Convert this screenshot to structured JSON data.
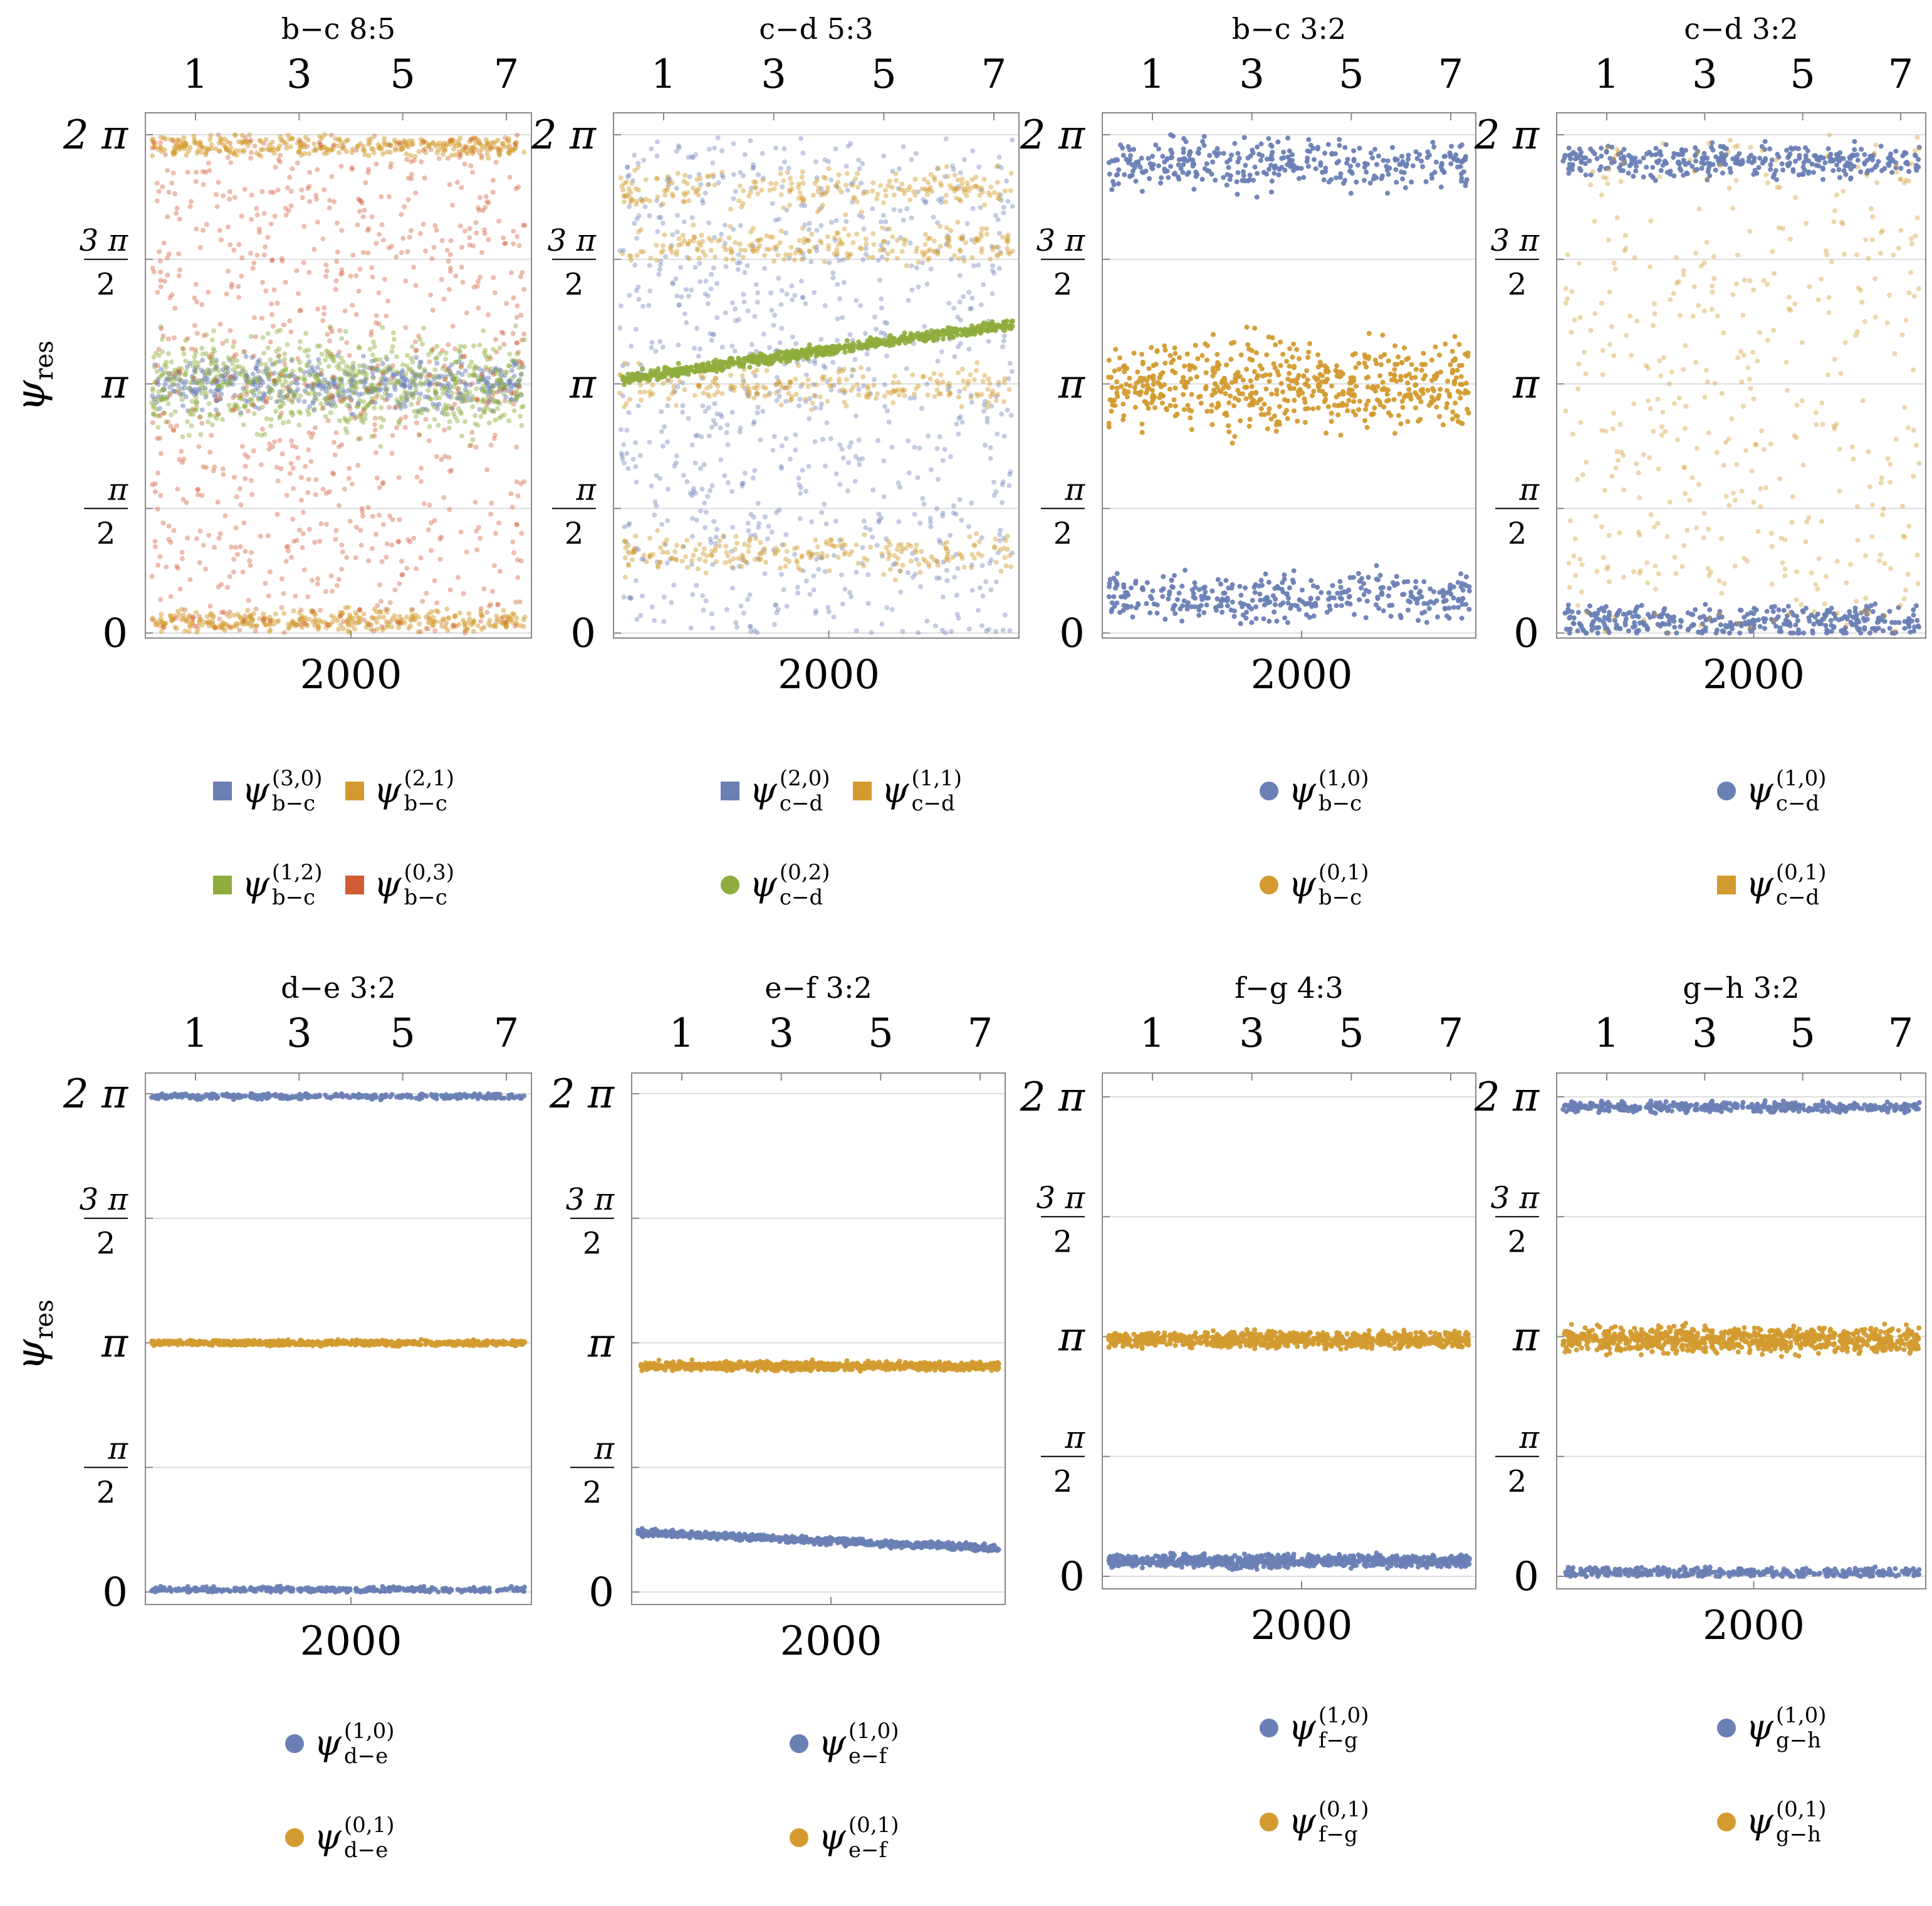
{
  "y_axis_label": "ψres",
  "y_axis_symbol": "ψ",
  "y_axis_subscript": "res",
  "y_tick_labels": [
    "0",
    "π/2",
    "π",
    "3π/2",
    "2π"
  ],
  "colors": {
    "blue": "#6a80b5",
    "orange": "#d39b2f",
    "green": "#8fad3c",
    "red": "#d15b34"
  },
  "chart_data": [
    {
      "type": "scatter",
      "title": "b−c 8:5",
      "top_ticks": [
        "1",
        "3",
        "5",
        "7"
      ],
      "bottom_tick": "2000",
      "ylim": [
        0,
        6.2832
      ],
      "series": [
        {
          "name": "ψ b−c (3,0)",
          "sup": "(3,0)",
          "sub": "b−c",
          "color": "blue",
          "marker": "square",
          "pattern": "band",
          "center": 3.14,
          "spread": 0.45,
          "count": 500,
          "alpha": 0.5
        },
        {
          "name": "ψ b−c (2,1)",
          "sup": "(2,1)",
          "sub": "b−c",
          "color": "orange",
          "marker": "square",
          "pattern": "edges",
          "center": 0.0,
          "spread": 0.5,
          "count": 700,
          "alpha": 0.5
        },
        {
          "name": "ψ b−c (1,2)",
          "sup": "(1,2)",
          "sub": "b−c",
          "color": "green",
          "marker": "square",
          "pattern": "band",
          "center": 3.14,
          "spread": 0.9,
          "count": 700,
          "alpha": 0.45
        },
        {
          "name": "ψ b−c (0,3)",
          "sup": "(0,3)",
          "sub": "b−c",
          "color": "red",
          "marker": "square",
          "pattern": "spread",
          "center": 0.0,
          "spread": 2.0,
          "count": 900,
          "alpha": 0.4
        }
      ]
    },
    {
      "type": "scatter",
      "title": "c−d 5:3",
      "top_ticks": [
        "1",
        "3",
        "5",
        "7"
      ],
      "bottom_tick": "2000",
      "ylim": [
        0,
        6.2832
      ],
      "series": [
        {
          "name": "ψ c−d (2,0)",
          "sup": "(2,0)",
          "sub": "c−d",
          "color": "blue",
          "marker": "square",
          "pattern": "spread",
          "center": 3.14,
          "spread": 3.1,
          "count": 900,
          "alpha": 0.4
        },
        {
          "name": "ψ c−d (1,1)",
          "sup": "(1,1)",
          "sub": "c−d",
          "color": "orange",
          "marker": "square",
          "pattern": "multiband",
          "centers": [
            5.6,
            4.9,
            3.1,
            1.0
          ],
          "spread": 0.35,
          "count": 900,
          "alpha": 0.45
        },
        {
          "name": "ψ c−d (0,2)",
          "sup": "(0,2)",
          "sub": "c−d",
          "color": "green",
          "marker": "circle",
          "pattern": "drift",
          "center": 3.2,
          "end": 3.9,
          "spread": 0.1,
          "count": 700,
          "alpha": 0.9
        }
      ]
    },
    {
      "type": "scatter",
      "title": "b−c 3:2",
      "top_ticks": [
        "1",
        "3",
        "5",
        "7"
      ],
      "bottom_tick": "2000",
      "ylim": [
        0,
        6.2832
      ],
      "series": [
        {
          "name": "ψ b−c (1,0)",
          "sup": "(1,0)",
          "sub": "b−c",
          "color": "blue",
          "marker": "circle",
          "pattern": "twoband",
          "centers": [
            5.9,
            0.45
          ],
          "spread": 0.45,
          "count": 700,
          "alpha": 0.95
        },
        {
          "name": "ψ b−c (0,1)",
          "sup": "(0,1)",
          "sub": "b−c",
          "color": "orange",
          "marker": "circle",
          "pattern": "band",
          "center": 3.14,
          "spread": 0.8,
          "count": 600,
          "alpha": 0.95
        }
      ]
    },
    {
      "type": "scatter",
      "title": "c−d 3:2",
      "top_ticks": [
        "1",
        "3",
        "5",
        "7"
      ],
      "bottom_tick": "2000",
      "ylim": [
        0,
        6.2832
      ],
      "series": [
        {
          "name": "ψ c−d (1,0)",
          "sup": "(1,0)",
          "sub": "c−d",
          "color": "blue",
          "marker": "circle",
          "pattern": "twoband",
          "centers": [
            5.95,
            0.15
          ],
          "spread": 0.3,
          "count": 700,
          "alpha": 0.95
        },
        {
          "name": "ψ c−d (0,1)",
          "sup": "(0,1)",
          "sub": "c−d",
          "color": "orange",
          "marker": "square",
          "pattern": "spread",
          "center": 3.14,
          "spread": 3.1,
          "count": 450,
          "alpha": 0.4
        }
      ]
    },
    {
      "type": "scatter",
      "title": "d−e 3:2",
      "top_ticks": [
        "1",
        "3",
        "5",
        "7"
      ],
      "bottom_tick": "2000",
      "ylim": [
        0,
        6.2832
      ],
      "series": [
        {
          "name": "ψ d−e (1,0)",
          "sup": "(1,0)",
          "sub": "d−e",
          "color": "blue",
          "marker": "circle",
          "pattern": "twoband",
          "centers": [
            6.25,
            0.03
          ],
          "spread": 0.05,
          "count": 700,
          "alpha": 0.95
        },
        {
          "name": "ψ d−e (0,1)",
          "sup": "(0,1)",
          "sub": "d−e",
          "color": "orange",
          "marker": "circle",
          "pattern": "band",
          "center": 3.14,
          "spread": 0.05,
          "count": 700,
          "alpha": 0.95
        }
      ]
    },
    {
      "type": "scatter",
      "title": "e−f 3:2",
      "top_ticks": [
        "1",
        "3",
        "5",
        "7"
      ],
      "bottom_tick": "2000",
      "ylim": [
        0,
        6.2832
      ],
      "series": [
        {
          "name": "ψ e−f (1,0)",
          "sup": "(1,0)",
          "sub": "e−f",
          "color": "blue",
          "marker": "circle",
          "pattern": "drift",
          "center": 0.75,
          "end": 0.55,
          "spread": 0.06,
          "count": 800,
          "alpha": 0.95
        },
        {
          "name": "ψ e−f (0,1)",
          "sup": "(0,1)",
          "sub": "e−f",
          "color": "orange",
          "marker": "circle",
          "pattern": "band",
          "center": 2.85,
          "spread": 0.08,
          "count": 800,
          "alpha": 0.95
        }
      ]
    },
    {
      "type": "scatter",
      "title": "f−g 4:3",
      "top_ticks": [
        "1",
        "3",
        "5",
        "7"
      ],
      "bottom_tick": "2000",
      "ylim": [
        0,
        6.2832
      ],
      "series": [
        {
          "name": "ψ f−g (1,0)",
          "sup": "(1,0)",
          "sub": "f−g",
          "color": "blue",
          "marker": "circle",
          "pattern": "band",
          "center": 0.2,
          "spread": 0.12,
          "count": 800,
          "alpha": 0.95
        },
        {
          "name": "ψ f−g (0,1)",
          "sup": "(0,1)",
          "sub": "f−g",
          "color": "orange",
          "marker": "circle",
          "pattern": "band",
          "center": 3.1,
          "spread": 0.15,
          "count": 800,
          "alpha": 0.95
        }
      ]
    },
    {
      "type": "scatter",
      "title": "g−h 3:2",
      "top_ticks": [
        "1",
        "3",
        "5",
        "7"
      ],
      "bottom_tick": "2000",
      "ylim": [
        0,
        6.2832
      ],
      "series": [
        {
          "name": "ψ g−h (1,0)",
          "sup": "(1,0)",
          "sub": "g−h",
          "color": "blue",
          "marker": "circle",
          "pattern": "twoband",
          "centers": [
            6.15,
            0.05
          ],
          "spread": 0.1,
          "count": 800,
          "alpha": 0.95
        },
        {
          "name": "ψ g−h (0,1)",
          "sup": "(0,1)",
          "sub": "g−h",
          "color": "orange",
          "marker": "circle",
          "pattern": "band",
          "center": 3.1,
          "spread": 0.25,
          "count": 800,
          "alpha": 0.95
        }
      ]
    }
  ]
}
